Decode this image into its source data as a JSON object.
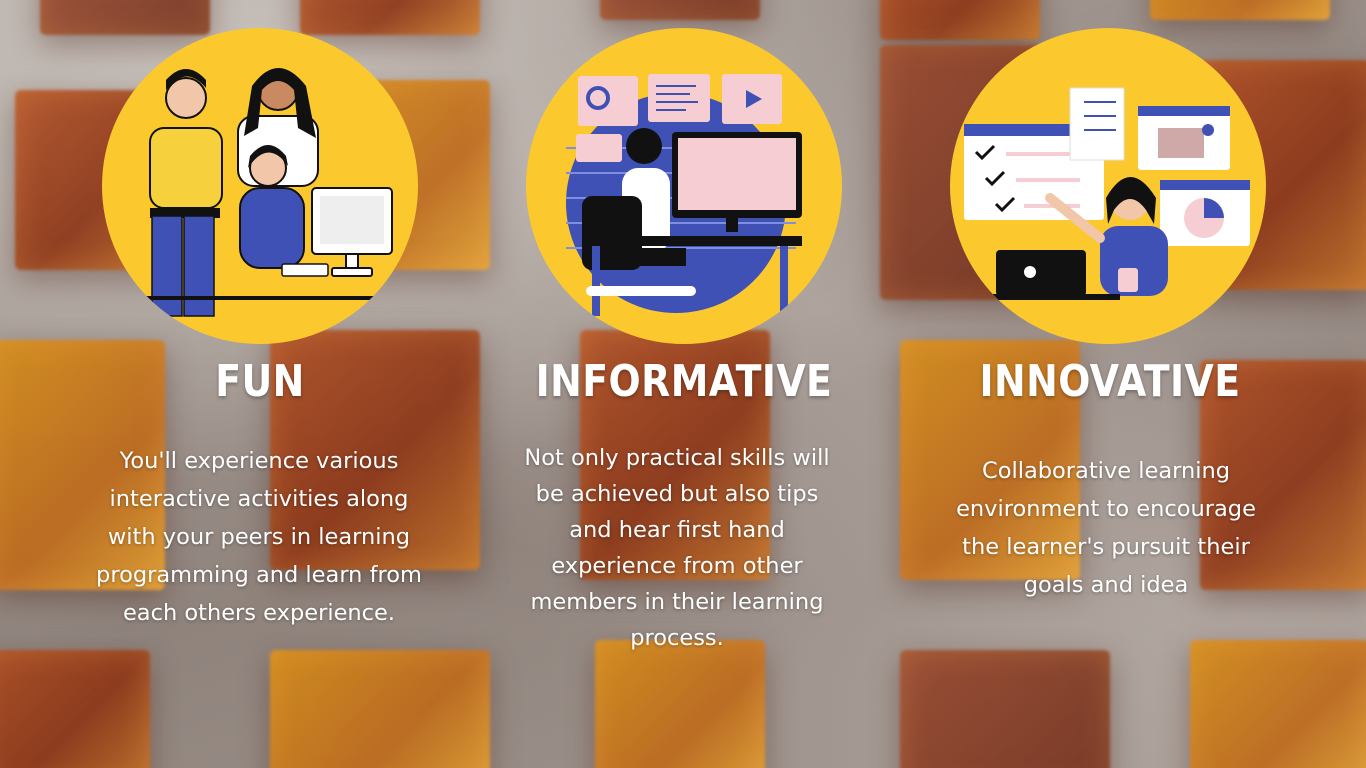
{
  "colors": {
    "accent_yellow": "#fbc92d",
    "illustration_blue": "#3f51b5",
    "text": "#ffffff",
    "cube_orange": "#b0481a"
  },
  "columns": [
    {
      "title": "FUN",
      "description": "You'll experience various interactive activities along with your peers in learning programming and learn from each others experience.",
      "illustration": "team-collaborating-illustration"
    },
    {
      "title": "INFORMATIVE",
      "description": "Not only practical skills will be achieved but also tips and hear first hand experience from other members in their learning process.",
      "illustration": "person-at-computer-dashboard-illustration"
    },
    {
      "title": "INNOVATIVE",
      "description": "Collaborative learning environment to encourage the learner's pursuit their goals and idea",
      "illustration": "woman-with-laptop-checklist-illustration"
    }
  ]
}
